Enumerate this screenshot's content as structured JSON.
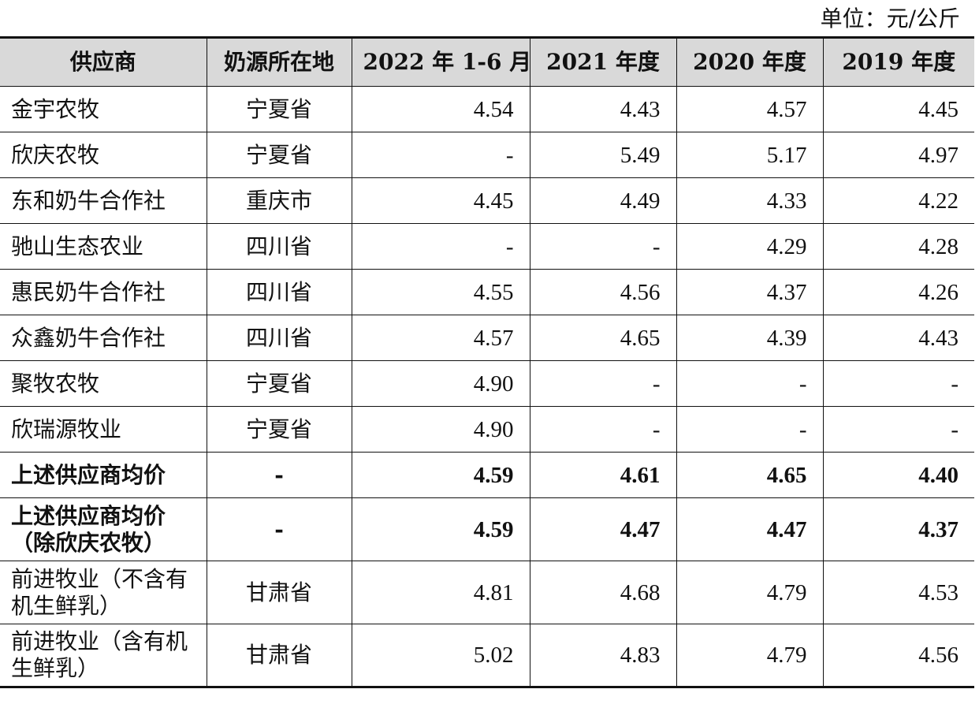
{
  "unit_label": "单位：元/公斤",
  "table": {
    "headers": [
      "供应商",
      "奶源所在地",
      "2022 年 1-6 月",
      "2021 年度",
      "2020 年度",
      "2019 年度"
    ],
    "rows": [
      {
        "name": "金宇农牧",
        "region": "宁夏省",
        "v2022": "4.54",
        "v2021": "4.43",
        "v2020": "4.57",
        "v2019": "4.45"
      },
      {
        "name": "欣庆农牧",
        "region": "宁夏省",
        "v2022": "-",
        "v2021": "5.49",
        "v2020": "5.17",
        "v2019": "4.97"
      },
      {
        "name": "东和奶牛合作社",
        "region": "重庆市",
        "v2022": "4.45",
        "v2021": "4.49",
        "v2020": "4.33",
        "v2019": "4.22"
      },
      {
        "name": "驰山生态农业",
        "region": "四川省",
        "v2022": "-",
        "v2021": "-",
        "v2020": "4.29",
        "v2019": "4.28"
      },
      {
        "name": "惠民奶牛合作社",
        "region": "四川省",
        "v2022": "4.55",
        "v2021": "4.56",
        "v2020": "4.37",
        "v2019": "4.26"
      },
      {
        "name": "众鑫奶牛合作社",
        "region": "四川省",
        "v2022": "4.57",
        "v2021": "4.65",
        "v2020": "4.39",
        "v2019": "4.43"
      },
      {
        "name": "聚牧农牧",
        "region": "宁夏省",
        "v2022": "4.90",
        "v2021": "-",
        "v2020": "-",
        "v2019": "-"
      },
      {
        "name": "欣瑞源牧业",
        "region": "宁夏省",
        "v2022": "4.90",
        "v2021": "-",
        "v2020": "-",
        "v2019": "-"
      },
      {
        "name": "上述供应商均价",
        "region": "-",
        "v2022": "4.59",
        "v2021": "4.61",
        "v2020": "4.65",
        "v2019": "4.40"
      },
      {
        "name_line1": "上述供应商均价",
        "name_line2": "（除欣庆农牧）",
        "region": "-",
        "v2022": "4.59",
        "v2021": "4.47",
        "v2020": "4.47",
        "v2019": "4.37"
      },
      {
        "name_line1": "前进牧业（不含有",
        "name_line2": "机生鲜乳）",
        "region": "甘肃省",
        "v2022": "4.81",
        "v2021": "4.68",
        "v2020": "4.79",
        "v2019": "4.53"
      },
      {
        "name_line1": "前进牧业（含有机",
        "name_line2": "生鲜乳）",
        "region": "甘肃省",
        "v2022": "5.02",
        "v2021": "4.83",
        "v2020": "4.79",
        "v2019": "4.56"
      }
    ]
  }
}
